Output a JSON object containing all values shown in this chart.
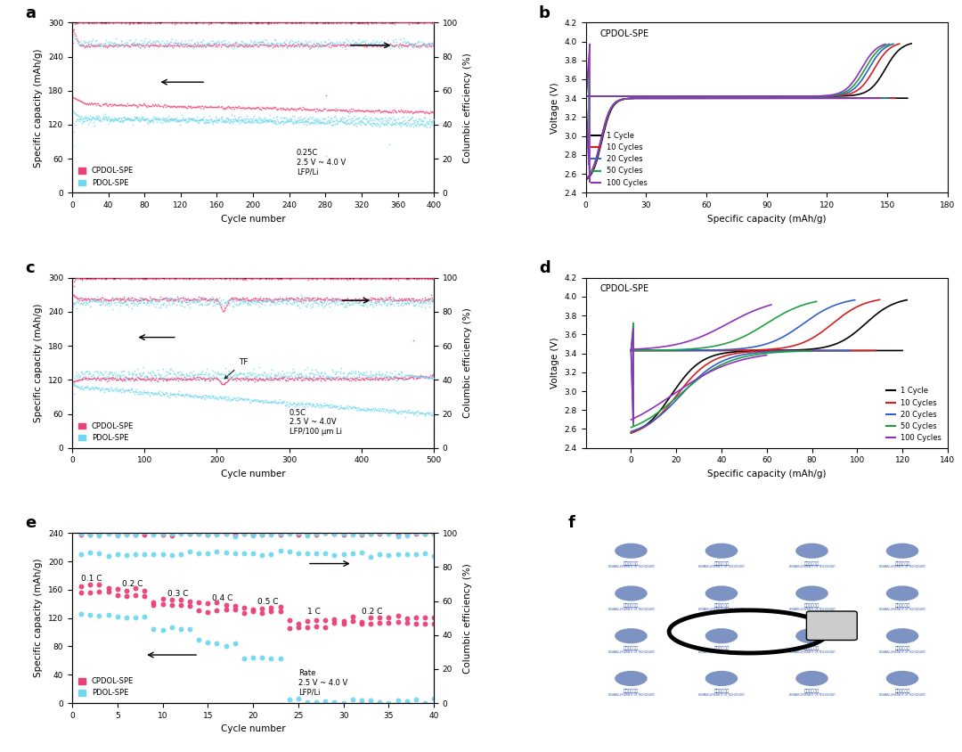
{
  "panel_a": {
    "xmax": 400,
    "ylim_left": [
      0,
      300
    ],
    "ylim_right": [
      0,
      100
    ],
    "xticks": [
      0,
      40,
      80,
      120,
      160,
      200,
      240,
      280,
      320,
      360,
      400
    ],
    "annotation_text": "0.25C\n2.5 V ~ 4.0 V\nLFP/Li"
  },
  "panel_b": {
    "xlim": [
      0,
      180
    ],
    "ylim": [
      2.4,
      4.2
    ],
    "xticks": [
      0,
      30,
      60,
      90,
      120,
      150,
      180
    ],
    "yticks": [
      2.4,
      2.6,
      2.8,
      3.0,
      3.2,
      3.4,
      3.6,
      3.8,
      4.0,
      4.2
    ],
    "cycles": [
      "1 Cycle",
      "10 Cycles",
      "20 Cycles",
      "50 Cycles",
      "100 Cycles"
    ],
    "cycle_colors": [
      "#000000",
      "#d42020",
      "#3060c8",
      "#20a040",
      "#9030c0"
    ],
    "cap_discharge": [
      160,
      154,
      151,
      149,
      147
    ],
    "cap_charge": [
      162,
      156,
      153,
      151,
      149
    ]
  },
  "panel_c": {
    "xmax": 500,
    "ylim_left": [
      0,
      300
    ],
    "ylim_right": [
      0,
      100
    ],
    "xticks": [
      0,
      100,
      200,
      300,
      400,
      500
    ],
    "annotation_text": "0.5C\n2.5 V ~ 4.0V\nLFP/100 μm Li"
  },
  "panel_d": {
    "xlim": [
      -20,
      140
    ],
    "ylim": [
      2.4,
      4.2
    ],
    "xticks": [
      0,
      20,
      40,
      60,
      80,
      100,
      120,
      140
    ],
    "yticks": [
      2.4,
      2.6,
      2.8,
      3.0,
      3.2,
      3.4,
      3.6,
      3.8,
      4.0,
      4.2
    ],
    "cycles": [
      "1 Cycle",
      "10 Cycles",
      "20 Cycles",
      "50 Cycles",
      "100 Cycles"
    ],
    "cycle_colors": [
      "#000000",
      "#d42020",
      "#3060c8",
      "#20a040",
      "#9030c0"
    ],
    "cap_discharge": [
      120,
      108,
      97,
      80,
      60
    ],
    "cap_charge": [
      122,
      110,
      99,
      82,
      62
    ]
  },
  "panel_e": {
    "xmax": 40,
    "ylim_left": [
      0,
      240
    ],
    "ylim_right": [
      0,
      100
    ],
    "xticks": [
      0,
      5,
      10,
      15,
      20,
      25,
      30,
      35,
      40
    ],
    "annotation_text": "Rate\n2.5 V ~ 4.0 V\nLFP/Li"
  },
  "colors": {
    "cpdol": "#e8417a",
    "pdol": "#70d8f0",
    "background": "#ffffff"
  }
}
